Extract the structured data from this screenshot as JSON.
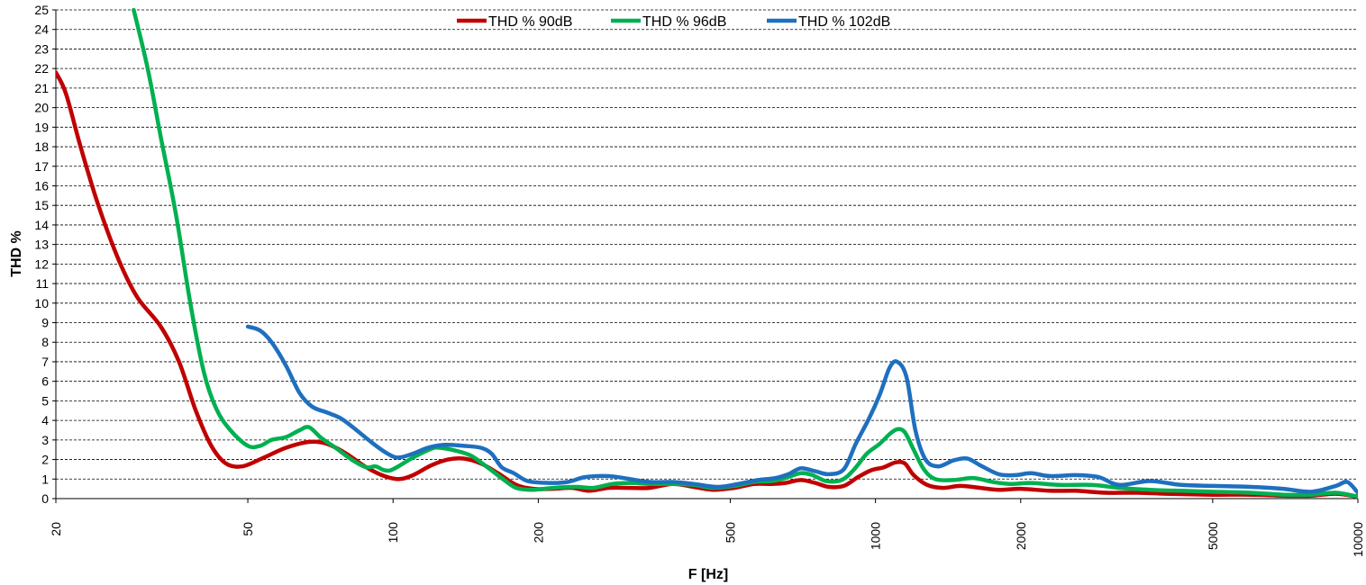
{
  "chart_data": {
    "type": "line",
    "xlabel": "F [Hz]",
    "ylabel": "THD %",
    "x_scale": "log",
    "xlim": [
      20,
      10000
    ],
    "ylim": [
      0,
      25
    ],
    "x_ticks": [
      20,
      50,
      100,
      200,
      500,
      1000,
      2000,
      5000,
      10000
    ],
    "y_ticks": [
      0,
      1,
      2,
      3,
      4,
      5,
      6,
      7,
      8,
      9,
      10,
      11,
      12,
      13,
      14,
      15,
      16,
      17,
      18,
      19,
      20,
      21,
      22,
      23,
      24,
      25
    ],
    "grid": "horizontal dashed",
    "legend_position": "top-center",
    "series": [
      {
        "name": "THD % 90dB",
        "color": "#c00000",
        "points": [
          [
            20,
            21.8
          ],
          [
            21,
            20.7
          ],
          [
            22.5,
            18.0
          ],
          [
            24.5,
            15.0
          ],
          [
            27,
            12.2
          ],
          [
            29.5,
            10.3
          ],
          [
            33,
            8.8
          ],
          [
            36,
            7.0
          ],
          [
            39,
            4.5
          ],
          [
            42,
            2.7
          ],
          [
            45,
            1.8
          ],
          [
            48.7,
            1.65
          ],
          [
            54,
            2.1
          ],
          [
            60,
            2.6
          ],
          [
            67,
            2.9
          ],
          [
            73,
            2.8
          ],
          [
            80,
            2.3
          ],
          [
            88,
            1.6
          ],
          [
            96,
            1.15
          ],
          [
            103,
            1.0
          ],
          [
            110,
            1.2
          ],
          [
            120,
            1.7
          ],
          [
            130,
            2.0
          ],
          [
            140,
            2.05
          ],
          [
            152,
            1.8
          ],
          [
            165,
            1.3
          ],
          [
            180,
            0.7
          ],
          [
            195,
            0.5
          ],
          [
            215,
            0.5
          ],
          [
            235,
            0.55
          ],
          [
            255,
            0.4
          ],
          [
            280,
            0.55
          ],
          [
            310,
            0.55
          ],
          [
            340,
            0.55
          ],
          [
            380,
            0.75
          ],
          [
            420,
            0.6
          ],
          [
            460,
            0.45
          ],
          [
            510,
            0.55
          ],
          [
            560,
            0.75
          ],
          [
            610,
            0.75
          ],
          [
            650,
            0.8
          ],
          [
            700,
            0.95
          ],
          [
            750,
            0.8
          ],
          [
            800,
            0.6
          ],
          [
            860,
            0.65
          ],
          [
            920,
            1.1
          ],
          [
            980,
            1.45
          ],
          [
            1040,
            1.6
          ],
          [
            1100,
            1.85
          ],
          [
            1150,
            1.8
          ],
          [
            1200,
            1.2
          ],
          [
            1280,
            0.7
          ],
          [
            1380,
            0.55
          ],
          [
            1500,
            0.65
          ],
          [
            1650,
            0.55
          ],
          [
            1800,
            0.45
          ],
          [
            2000,
            0.5
          ],
          [
            2300,
            0.4
          ],
          [
            2600,
            0.4
          ],
          [
            3000,
            0.3
          ],
          [
            3500,
            0.3
          ],
          [
            4000,
            0.25
          ],
          [
            5000,
            0.2
          ],
          [
            6000,
            0.2
          ],
          [
            7000,
            0.15
          ],
          [
            8000,
            0.15
          ],
          [
            9000,
            0.25
          ],
          [
            10000,
            0.1
          ]
        ]
      },
      {
        "name": "THD % 96dB",
        "color": "#00b050",
        "points": [
          [
            29,
            25
          ],
          [
            31,
            22.0
          ],
          [
            33,
            18.5
          ],
          [
            35.5,
            14.5
          ],
          [
            38,
            10.0
          ],
          [
            40.5,
            6.5
          ],
          [
            43,
            4.6
          ],
          [
            46,
            3.5
          ],
          [
            50,
            2.7
          ],
          [
            53,
            2.7
          ],
          [
            56,
            3.0
          ],
          [
            60,
            3.15
          ],
          [
            64,
            3.5
          ],
          [
            67,
            3.65
          ],
          [
            71,
            3.1
          ],
          [
            76,
            2.6
          ],
          [
            82,
            2.0
          ],
          [
            88,
            1.6
          ],
          [
            92,
            1.65
          ],
          [
            96,
            1.45
          ],
          [
            100,
            1.5
          ],
          [
            110,
            2.1
          ],
          [
            120,
            2.55
          ],
          [
            125,
            2.6
          ],
          [
            135,
            2.45
          ],
          [
            145,
            2.2
          ],
          [
            155,
            1.7
          ],
          [
            170,
            0.95
          ],
          [
            180,
            0.55
          ],
          [
            195,
            0.45
          ],
          [
            215,
            0.55
          ],
          [
            240,
            0.6
          ],
          [
            260,
            0.55
          ],
          [
            285,
            0.75
          ],
          [
            310,
            0.8
          ],
          [
            340,
            0.75
          ],
          [
            380,
            0.75
          ],
          [
            420,
            0.7
          ],
          [
            460,
            0.55
          ],
          [
            510,
            0.65
          ],
          [
            560,
            0.85
          ],
          [
            610,
            0.9
          ],
          [
            650,
            1.05
          ],
          [
            700,
            1.3
          ],
          [
            740,
            1.2
          ],
          [
            790,
            0.9
          ],
          [
            850,
            0.95
          ],
          [
            900,
            1.45
          ],
          [
            960,
            2.3
          ],
          [
            1020,
            2.8
          ],
          [
            1070,
            3.3
          ],
          [
            1110,
            3.55
          ],
          [
            1150,
            3.4
          ],
          [
            1200,
            2.5
          ],
          [
            1260,
            1.5
          ],
          [
            1330,
            1.0
          ],
          [
            1450,
            0.95
          ],
          [
            1600,
            1.05
          ],
          [
            1750,
            0.85
          ],
          [
            1900,
            0.75
          ],
          [
            2100,
            0.8
          ],
          [
            2400,
            0.7
          ],
          [
            2800,
            0.7
          ],
          [
            3200,
            0.55
          ],
          [
            3700,
            0.45
          ],
          [
            4300,
            0.4
          ],
          [
            5000,
            0.35
          ],
          [
            6000,
            0.3
          ],
          [
            7000,
            0.2
          ],
          [
            8000,
            0.2
          ],
          [
            9000,
            0.3
          ],
          [
            10000,
            0.1
          ]
        ]
      },
      {
        "name": "THD % 102dB",
        "color": "#1f6fbf",
        "points": [
          [
            50,
            8.8
          ],
          [
            53,
            8.6
          ],
          [
            56,
            8.0
          ],
          [
            60,
            6.8
          ],
          [
            64,
            5.4
          ],
          [
            68,
            4.7
          ],
          [
            73,
            4.4
          ],
          [
            78,
            4.1
          ],
          [
            84,
            3.5
          ],
          [
            90,
            2.9
          ],
          [
            96,
            2.4
          ],
          [
            102,
            2.1
          ],
          [
            110,
            2.3
          ],
          [
            118,
            2.6
          ],
          [
            128,
            2.75
          ],
          [
            140,
            2.7
          ],
          [
            152,
            2.6
          ],
          [
            160,
            2.3
          ],
          [
            168,
            1.6
          ],
          [
            178,
            1.3
          ],
          [
            190,
            0.9
          ],
          [
            210,
            0.8
          ],
          [
            230,
            0.85
          ],
          [
            250,
            1.1
          ],
          [
            280,
            1.15
          ],
          [
            310,
            1.0
          ],
          [
            340,
            0.85
          ],
          [
            380,
            0.85
          ],
          [
            420,
            0.75
          ],
          [
            470,
            0.6
          ],
          [
            520,
            0.75
          ],
          [
            570,
            0.95
          ],
          [
            620,
            1.05
          ],
          [
            660,
            1.25
          ],
          [
            700,
            1.55
          ],
          [
            750,
            1.4
          ],
          [
            800,
            1.25
          ],
          [
            860,
            1.5
          ],
          [
            910,
            2.8
          ],
          [
            970,
            4.1
          ],
          [
            1020,
            5.3
          ],
          [
            1070,
            6.7
          ],
          [
            1110,
            7.0
          ],
          [
            1160,
            6.2
          ],
          [
            1210,
            3.5
          ],
          [
            1270,
            2.0
          ],
          [
            1350,
            1.65
          ],
          [
            1450,
            1.95
          ],
          [
            1550,
            2.05
          ],
          [
            1650,
            1.7
          ],
          [
            1800,
            1.25
          ],
          [
            1950,
            1.2
          ],
          [
            2100,
            1.3
          ],
          [
            2300,
            1.15
          ],
          [
            2600,
            1.2
          ],
          [
            2900,
            1.1
          ],
          [
            3200,
            0.7
          ],
          [
            3700,
            0.9
          ],
          [
            4300,
            0.7
          ],
          [
            5000,
            0.65
          ],
          [
            6000,
            0.6
          ],
          [
            7000,
            0.5
          ],
          [
            8000,
            0.35
          ],
          [
            9000,
            0.65
          ],
          [
            9500,
            0.85
          ],
          [
            10000,
            0.3
          ]
        ]
      }
    ]
  }
}
